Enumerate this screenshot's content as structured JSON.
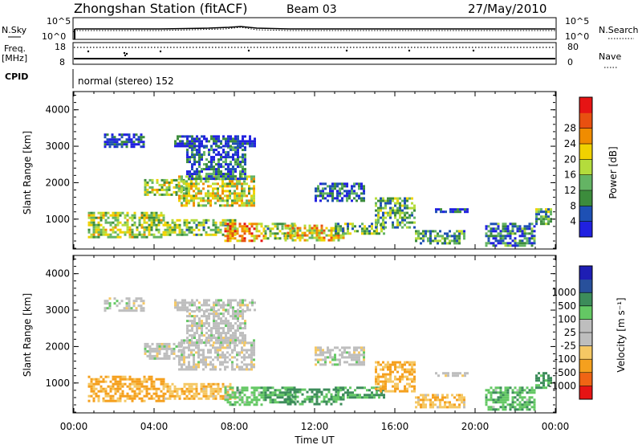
{
  "header": {
    "station": "Zhongshan Station (fitACF)",
    "beam": "Beam 03",
    "date": "27/May/2010"
  },
  "top_panels": {
    "nsky_label": "N.Sky",
    "nsky_hi": "10^5",
    "nsky_lo": "10^0",
    "nsearch_label": "N.Search",
    "nsearch_hi": "10^5",
    "nsearch_lo": "10^0",
    "freq_label": "Freq.",
    "freq_unit": "[MHz]",
    "freq_hi": "18",
    "freq_lo": "8",
    "nave_label": "Nave",
    "nave_hi": "80",
    "nave_lo": "0",
    "cpid_label": "CPID",
    "cpid_text": "normal (stereo) 152"
  },
  "colors": {
    "power_scale": [
      "#2020e0",
      "#1e50b4",
      "#3c8c3c",
      "#64b464",
      "#b4dc3c",
      "#f0d200",
      "#f08c00",
      "#e85010",
      "#e61414"
    ],
    "velocity_scale": [
      "#e61414",
      "#f06414",
      "#f5a01e",
      "#f5c864",
      "#bebebe",
      "#bebebe",
      "#64c864",
      "#3c8c5a",
      "#28509b",
      "#1e1eb4"
    ]
  },
  "chart_data": [
    {
      "type": "heatmap",
      "title": "",
      "ylabel": "Slant Range [km]",
      "xlabel": "",
      "x_range_hours": [
        0,
        24
      ],
      "ylim": [
        180,
        4500
      ],
      "yticks": [
        "1000",
        "2000",
        "3000",
        "4000"
      ],
      "xticks": [
        "00:00",
        "04:00",
        "08:00",
        "12:00",
        "16:00",
        "20:00",
        "00:00"
      ],
      "colorbar": {
        "label": "Power [dB]",
        "ticks": [
          "4",
          "8",
          "12",
          "16",
          "20",
          "24",
          "28"
        ],
        "range": [
          0,
          30
        ]
      },
      "regions": [
        {
          "t": [
            0.7,
            4.5
          ],
          "r": [
            500,
            1200
          ],
          "level": 14
        },
        {
          "t": [
            4.5,
            8.0
          ],
          "r": [
            600,
            1000
          ],
          "level": 13
        },
        {
          "t": [
            1.5,
            3.5
          ],
          "r": [
            3000,
            3350
          ],
          "level": 3
        },
        {
          "t": [
            3.5,
            5.5
          ],
          "r": [
            1700,
            2100
          ],
          "level": 14
        },
        {
          "t": [
            5.2,
            9.0
          ],
          "r": [
            1400,
            2200
          ],
          "level": 16
        },
        {
          "t": [
            5.6,
            8.6
          ],
          "r": [
            2100,
            3000
          ],
          "level": 6
        },
        {
          "t": [
            5.0,
            9.0
          ],
          "r": [
            3000,
            3300
          ],
          "level": 3
        },
        {
          "t": [
            7.5,
            9.5
          ],
          "r": [
            400,
            900
          ],
          "level": 22
        },
        {
          "t": [
            9.5,
            11.0
          ],
          "r": [
            500,
            900
          ],
          "level": 12
        },
        {
          "t": [
            10.5,
            13.5
          ],
          "r": [
            450,
            850
          ],
          "level": 18
        },
        {
          "t": [
            12.0,
            14.5
          ],
          "r": [
            1500,
            2000
          ],
          "level": 6
        },
        {
          "t": [
            13.0,
            15.5
          ],
          "r": [
            600,
            900
          ],
          "level": 12
        },
        {
          "t": [
            15.0,
            17.0
          ],
          "r": [
            800,
            1600
          ],
          "level": 11
        },
        {
          "t": [
            17.0,
            19.5
          ],
          "r": [
            350,
            700
          ],
          "level": 10
        },
        {
          "t": [
            18.0,
            19.6
          ],
          "r": [
            1200,
            1300
          ],
          "level": 3
        },
        {
          "t": [
            20.5,
            23.0
          ],
          "r": [
            300,
            900
          ],
          "level": 7
        },
        {
          "t": [
            23.0,
            23.8
          ],
          "r": [
            900,
            1300
          ],
          "level": 11
        }
      ]
    },
    {
      "type": "heatmap",
      "title": "",
      "ylabel": "Slant Range [km]",
      "xlabel": "Time UT",
      "x_range_hours": [
        0,
        24
      ],
      "ylim": [
        180,
        4500
      ],
      "yticks": [
        "1000",
        "2000",
        "3000",
        "4000"
      ],
      "xticks": [
        "00:00",
        "04:00",
        "08:00",
        "12:00",
        "16:00",
        "20:00",
        "00:00"
      ],
      "colorbar": {
        "label": "Velocity [m s⁻¹]",
        "ticks": [
          "-1000",
          "-500",
          "-100",
          "-25",
          "25",
          "100",
          "500",
          "1000"
        ],
        "range": [
          -1200,
          1200
        ]
      },
      "regions": [
        {
          "t": [
            0.7,
            4.5
          ],
          "r": [
            500,
            1200
          ],
          "level": -150
        },
        {
          "t": [
            4.5,
            8.0
          ],
          "r": [
            600,
            1000
          ],
          "level": -80
        },
        {
          "t": [
            1.5,
            3.5
          ],
          "r": [
            3000,
            3350
          ],
          "level": 0
        },
        {
          "t": [
            3.5,
            5.5
          ],
          "r": [
            1700,
            2100
          ],
          "level": 0
        },
        {
          "t": [
            5.2,
            9.0
          ],
          "r": [
            1400,
            2200
          ],
          "level": 0
        },
        {
          "t": [
            5.6,
            8.6
          ],
          "r": [
            2100,
            3000
          ],
          "level": 0
        },
        {
          "t": [
            5.0,
            9.0
          ],
          "r": [
            3000,
            3300
          ],
          "level": 0
        },
        {
          "t": [
            7.5,
            9.5
          ],
          "r": [
            400,
            900
          ],
          "level": 60
        },
        {
          "t": [
            9.5,
            11.0
          ],
          "r": [
            500,
            900
          ],
          "level": 120
        },
        {
          "t": [
            10.5,
            13.5
          ],
          "r": [
            450,
            850
          ],
          "level": 150
        },
        {
          "t": [
            12.0,
            14.5
          ],
          "r": [
            1500,
            2000
          ],
          "level": 0
        },
        {
          "t": [
            13.0,
            15.5
          ],
          "r": [
            600,
            900
          ],
          "level": 120
        },
        {
          "t": [
            15.0,
            17.0
          ],
          "r": [
            800,
            1600
          ],
          "level": -120
        },
        {
          "t": [
            17.0,
            19.5
          ],
          "r": [
            350,
            700
          ],
          "level": -80
        },
        {
          "t": [
            18.0,
            19.6
          ],
          "r": [
            1200,
            1300
          ],
          "level": 0
        },
        {
          "t": [
            20.5,
            23.0
          ],
          "r": [
            300,
            900
          ],
          "level": 80
        },
        {
          "t": [
            23.0,
            23.8
          ],
          "r": [
            900,
            1300
          ],
          "level": 200
        }
      ]
    }
  ]
}
